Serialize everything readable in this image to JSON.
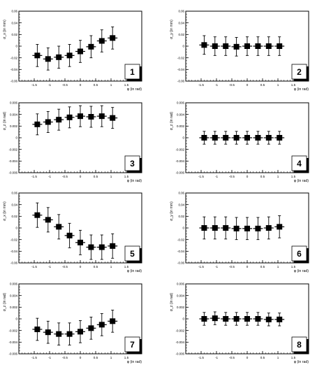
{
  "chart_data": [
    {
      "type": "scatter",
      "panel_label": "1",
      "ylabel": "σ_x (in mm)",
      "xlabel": "φ (in rad)",
      "xlim": [
        -2,
        2
      ],
      "ylim": [
        -0.06,
        0.06
      ],
      "x_ticks": [
        "-1.5",
        "-1",
        "-0.5",
        "0",
        "0.5",
        "1",
        "1.5"
      ],
      "y_ticks": [
        "-0.06",
        "-0.04",
        "-0.02",
        "0",
        "0.02",
        "0.04",
        "0.06"
      ],
      "points": [
        {
          "x": -1.4,
          "y": -0.016,
          "err": 0.019
        },
        {
          "x": -1.05,
          "y": -0.022,
          "err": 0.019
        },
        {
          "x": -0.7,
          "y": -0.019,
          "err": 0.019
        },
        {
          "x": -0.35,
          "y": -0.016,
          "err": 0.019
        },
        {
          "x": 0.0,
          "y": -0.009,
          "err": 0.019
        },
        {
          "x": 0.35,
          "y": -0.001,
          "err": 0.019
        },
        {
          "x": 0.7,
          "y": 0.009,
          "err": 0.019
        },
        {
          "x": 1.05,
          "y": 0.014,
          "err": 0.019
        }
      ]
    },
    {
      "type": "scatter",
      "panel_label": "2",
      "ylabel": "σ_y (in mm)",
      "xlabel": "φ (in rad)",
      "xlim": [
        -2,
        2
      ],
      "ylim": [
        -0.06,
        0.06
      ],
      "x_ticks": [
        "-1.5",
        "-1",
        "-0.5",
        "0",
        "0.5",
        "1",
        "1.5"
      ],
      "y_ticks": [
        "-0.06",
        "-0.04",
        "-0.02",
        "0",
        "0.02",
        "0.04",
        "0.06"
      ],
      "points": [
        {
          "x": -1.4,
          "y": 0.002,
          "err": 0.016
        },
        {
          "x": -1.05,
          "y": 0.0,
          "err": 0.016
        },
        {
          "x": -0.7,
          "y": 0.0,
          "err": 0.016
        },
        {
          "x": -0.35,
          "y": -0.001,
          "err": 0.016
        },
        {
          "x": 0.0,
          "y": 0.0,
          "err": 0.016
        },
        {
          "x": 0.35,
          "y": 0.0,
          "err": 0.016
        },
        {
          "x": 0.7,
          "y": 0.0,
          "err": 0.016
        },
        {
          "x": 1.05,
          "y": 0.0,
          "err": 0.016
        }
      ]
    },
    {
      "type": "scatter",
      "panel_label": "3",
      "ylabel": "σ_z (in rad)",
      "xlabel": "φ (in rad)",
      "xlim": [
        -2,
        2
      ],
      "ylim": [
        -0.006,
        0.006
      ],
      "x_ticks": [
        "-1.5",
        "-1",
        "-0.5",
        "0",
        "0.5",
        "1",
        "1.5"
      ],
      "y_ticks": [
        "-0.006",
        "-0.004",
        "-0.002",
        "0",
        "0.002",
        "0.004",
        "0.006"
      ],
      "points": [
        {
          "x": -1.4,
          "y": 0.0023,
          "err": 0.0018
        },
        {
          "x": -1.05,
          "y": 0.0027,
          "err": 0.0018
        },
        {
          "x": -0.7,
          "y": 0.0031,
          "err": 0.0018
        },
        {
          "x": -0.35,
          "y": 0.0035,
          "err": 0.0018
        },
        {
          "x": 0.0,
          "y": 0.0037,
          "err": 0.0018
        },
        {
          "x": 0.35,
          "y": 0.0036,
          "err": 0.0018
        },
        {
          "x": 0.7,
          "y": 0.0037,
          "err": 0.0018
        },
        {
          "x": 1.05,
          "y": 0.0034,
          "err": 0.0018
        }
      ]
    },
    {
      "type": "scatter",
      "panel_label": "4",
      "ylabel": "σ_z (in rad)",
      "xlabel": "φ (in rad)",
      "xlim": [
        -2,
        2
      ],
      "ylim": [
        -0.006,
        0.006
      ],
      "x_ticks": [
        "-1.5",
        "-1",
        "-0.5",
        "0",
        "0.5",
        "1",
        "1.5"
      ],
      "y_ticks": [
        "-0.006",
        "-0.004",
        "-0.002",
        "0",
        "0.002",
        "0.004",
        "0.006"
      ],
      "points": [
        {
          "x": -1.4,
          "y": 0.0,
          "err": 0.0011
        },
        {
          "x": -1.05,
          "y": 0.0,
          "err": 0.0011
        },
        {
          "x": -0.7,
          "y": 0.0,
          "err": 0.0011
        },
        {
          "x": -0.35,
          "y": 0.0,
          "err": 0.0011
        },
        {
          "x": 0.0,
          "y": 0.0,
          "err": 0.0011
        },
        {
          "x": 0.35,
          "y": 0.0,
          "err": 0.0011
        },
        {
          "x": 0.7,
          "y": 0.0,
          "err": 0.0011
        },
        {
          "x": 1.05,
          "y": 0.0,
          "err": 0.0011
        }
      ]
    },
    {
      "type": "scatter",
      "panel_label": "5",
      "ylabel": "σ_x (in mm)",
      "xlabel": "φ (in rad)",
      "xlim": [
        -2,
        2
      ],
      "ylim": [
        -0.06,
        0.06
      ],
      "x_ticks": [
        "-1.5",
        "-1",
        "-0.5",
        "0",
        "0.5",
        "1",
        "1.5"
      ],
      "y_ticks": [
        "-0.06",
        "-0.04",
        "-0.02",
        "0",
        "0.02",
        "0.04",
        "0.06"
      ],
      "points": [
        {
          "x": -1.4,
          "y": 0.022,
          "err": 0.021
        },
        {
          "x": -1.05,
          "y": 0.014,
          "err": 0.021
        },
        {
          "x": -0.7,
          "y": 0.002,
          "err": 0.021
        },
        {
          "x": -0.35,
          "y": -0.013,
          "err": 0.021
        },
        {
          "x": 0.0,
          "y": -0.025,
          "err": 0.021
        },
        {
          "x": 0.35,
          "y": -0.033,
          "err": 0.021
        },
        {
          "x": 0.7,
          "y": -0.033,
          "err": 0.021
        },
        {
          "x": 1.05,
          "y": -0.031,
          "err": 0.021
        }
      ]
    },
    {
      "type": "scatter",
      "panel_label": "6",
      "ylabel": "σ_y (in mm)",
      "xlabel": "φ (in rad)",
      "xlim": [
        -2,
        2
      ],
      "ylim": [
        -0.06,
        0.06
      ],
      "x_ticks": [
        "-1.5",
        "-1",
        "-0.5",
        "0",
        "0.5",
        "1",
        "1.5"
      ],
      "y_ticks": [
        "-0.06",
        "-0.04",
        "-0.02",
        "0",
        "0.02",
        "0.04",
        "0.06"
      ],
      "points": [
        {
          "x": -1.4,
          "y": 0.0,
          "err": 0.019
        },
        {
          "x": -1.05,
          "y": 0.0,
          "err": 0.019
        },
        {
          "x": -0.7,
          "y": 0.0,
          "err": 0.019
        },
        {
          "x": -0.35,
          "y": -0.001,
          "err": 0.019
        },
        {
          "x": 0.0,
          "y": -0.001,
          "err": 0.019
        },
        {
          "x": 0.35,
          "y": -0.001,
          "err": 0.019
        },
        {
          "x": 0.7,
          "y": 0.0,
          "err": 0.019
        },
        {
          "x": 1.05,
          "y": 0.002,
          "err": 0.019
        }
      ]
    },
    {
      "type": "scatter",
      "panel_label": "7",
      "ylabel": "σ_z (in rad)",
      "xlabel": "φ (in rad)",
      "xlim": [
        -2,
        2
      ],
      "ylim": [
        -0.006,
        0.006
      ],
      "x_ticks": [
        "-1.5",
        "-1",
        "-0.5",
        "0",
        "0.5",
        "1",
        "1.5"
      ],
      "y_ticks": [
        "-0.006",
        "-0.004",
        "-0.002",
        "0",
        "0.002",
        "0.004",
        "0.006"
      ],
      "points": [
        {
          "x": -1.4,
          "y": -0.0018,
          "err": 0.0019
        },
        {
          "x": -1.05,
          "y": -0.0023,
          "err": 0.0019
        },
        {
          "x": -0.7,
          "y": -0.0026,
          "err": 0.0019
        },
        {
          "x": -0.35,
          "y": -0.0026,
          "err": 0.0019
        },
        {
          "x": 0.0,
          "y": -0.0022,
          "err": 0.0019
        },
        {
          "x": 0.35,
          "y": -0.0016,
          "err": 0.0019
        },
        {
          "x": 0.7,
          "y": -0.001,
          "err": 0.0019
        },
        {
          "x": 1.05,
          "y": -0.0004,
          "err": 0.0019
        }
      ]
    },
    {
      "type": "scatter",
      "panel_label": "8",
      "ylabel": "σ_z (in rad)",
      "xlabel": "φ (in rad)",
      "xlim": [
        -2,
        2
      ],
      "ylim": [
        -0.006,
        0.006
      ],
      "x_ticks": [
        "-1.5",
        "-1",
        "-0.5",
        "0",
        "0.5",
        "1",
        "1.5"
      ],
      "y_ticks": [
        "-0.006",
        "-0.004",
        "-0.002",
        "0",
        "0.002",
        "0.004",
        "0.006"
      ],
      "points": [
        {
          "x": -1.4,
          "y": 0.0,
          "err": 0.0011
        },
        {
          "x": -1.05,
          "y": 0.0001,
          "err": 0.0011
        },
        {
          "x": -0.7,
          "y": 0.0,
          "err": 0.0011
        },
        {
          "x": -0.35,
          "y": 0.0,
          "err": 0.0011
        },
        {
          "x": 0.0,
          "y": 0.0,
          "err": 0.0011
        },
        {
          "x": 0.35,
          "y": 0.0,
          "err": 0.0011
        },
        {
          "x": 0.7,
          "y": -0.0001,
          "err": 0.0011
        },
        {
          "x": 1.05,
          "y": -0.0001,
          "err": 0.0011
        }
      ]
    }
  ]
}
